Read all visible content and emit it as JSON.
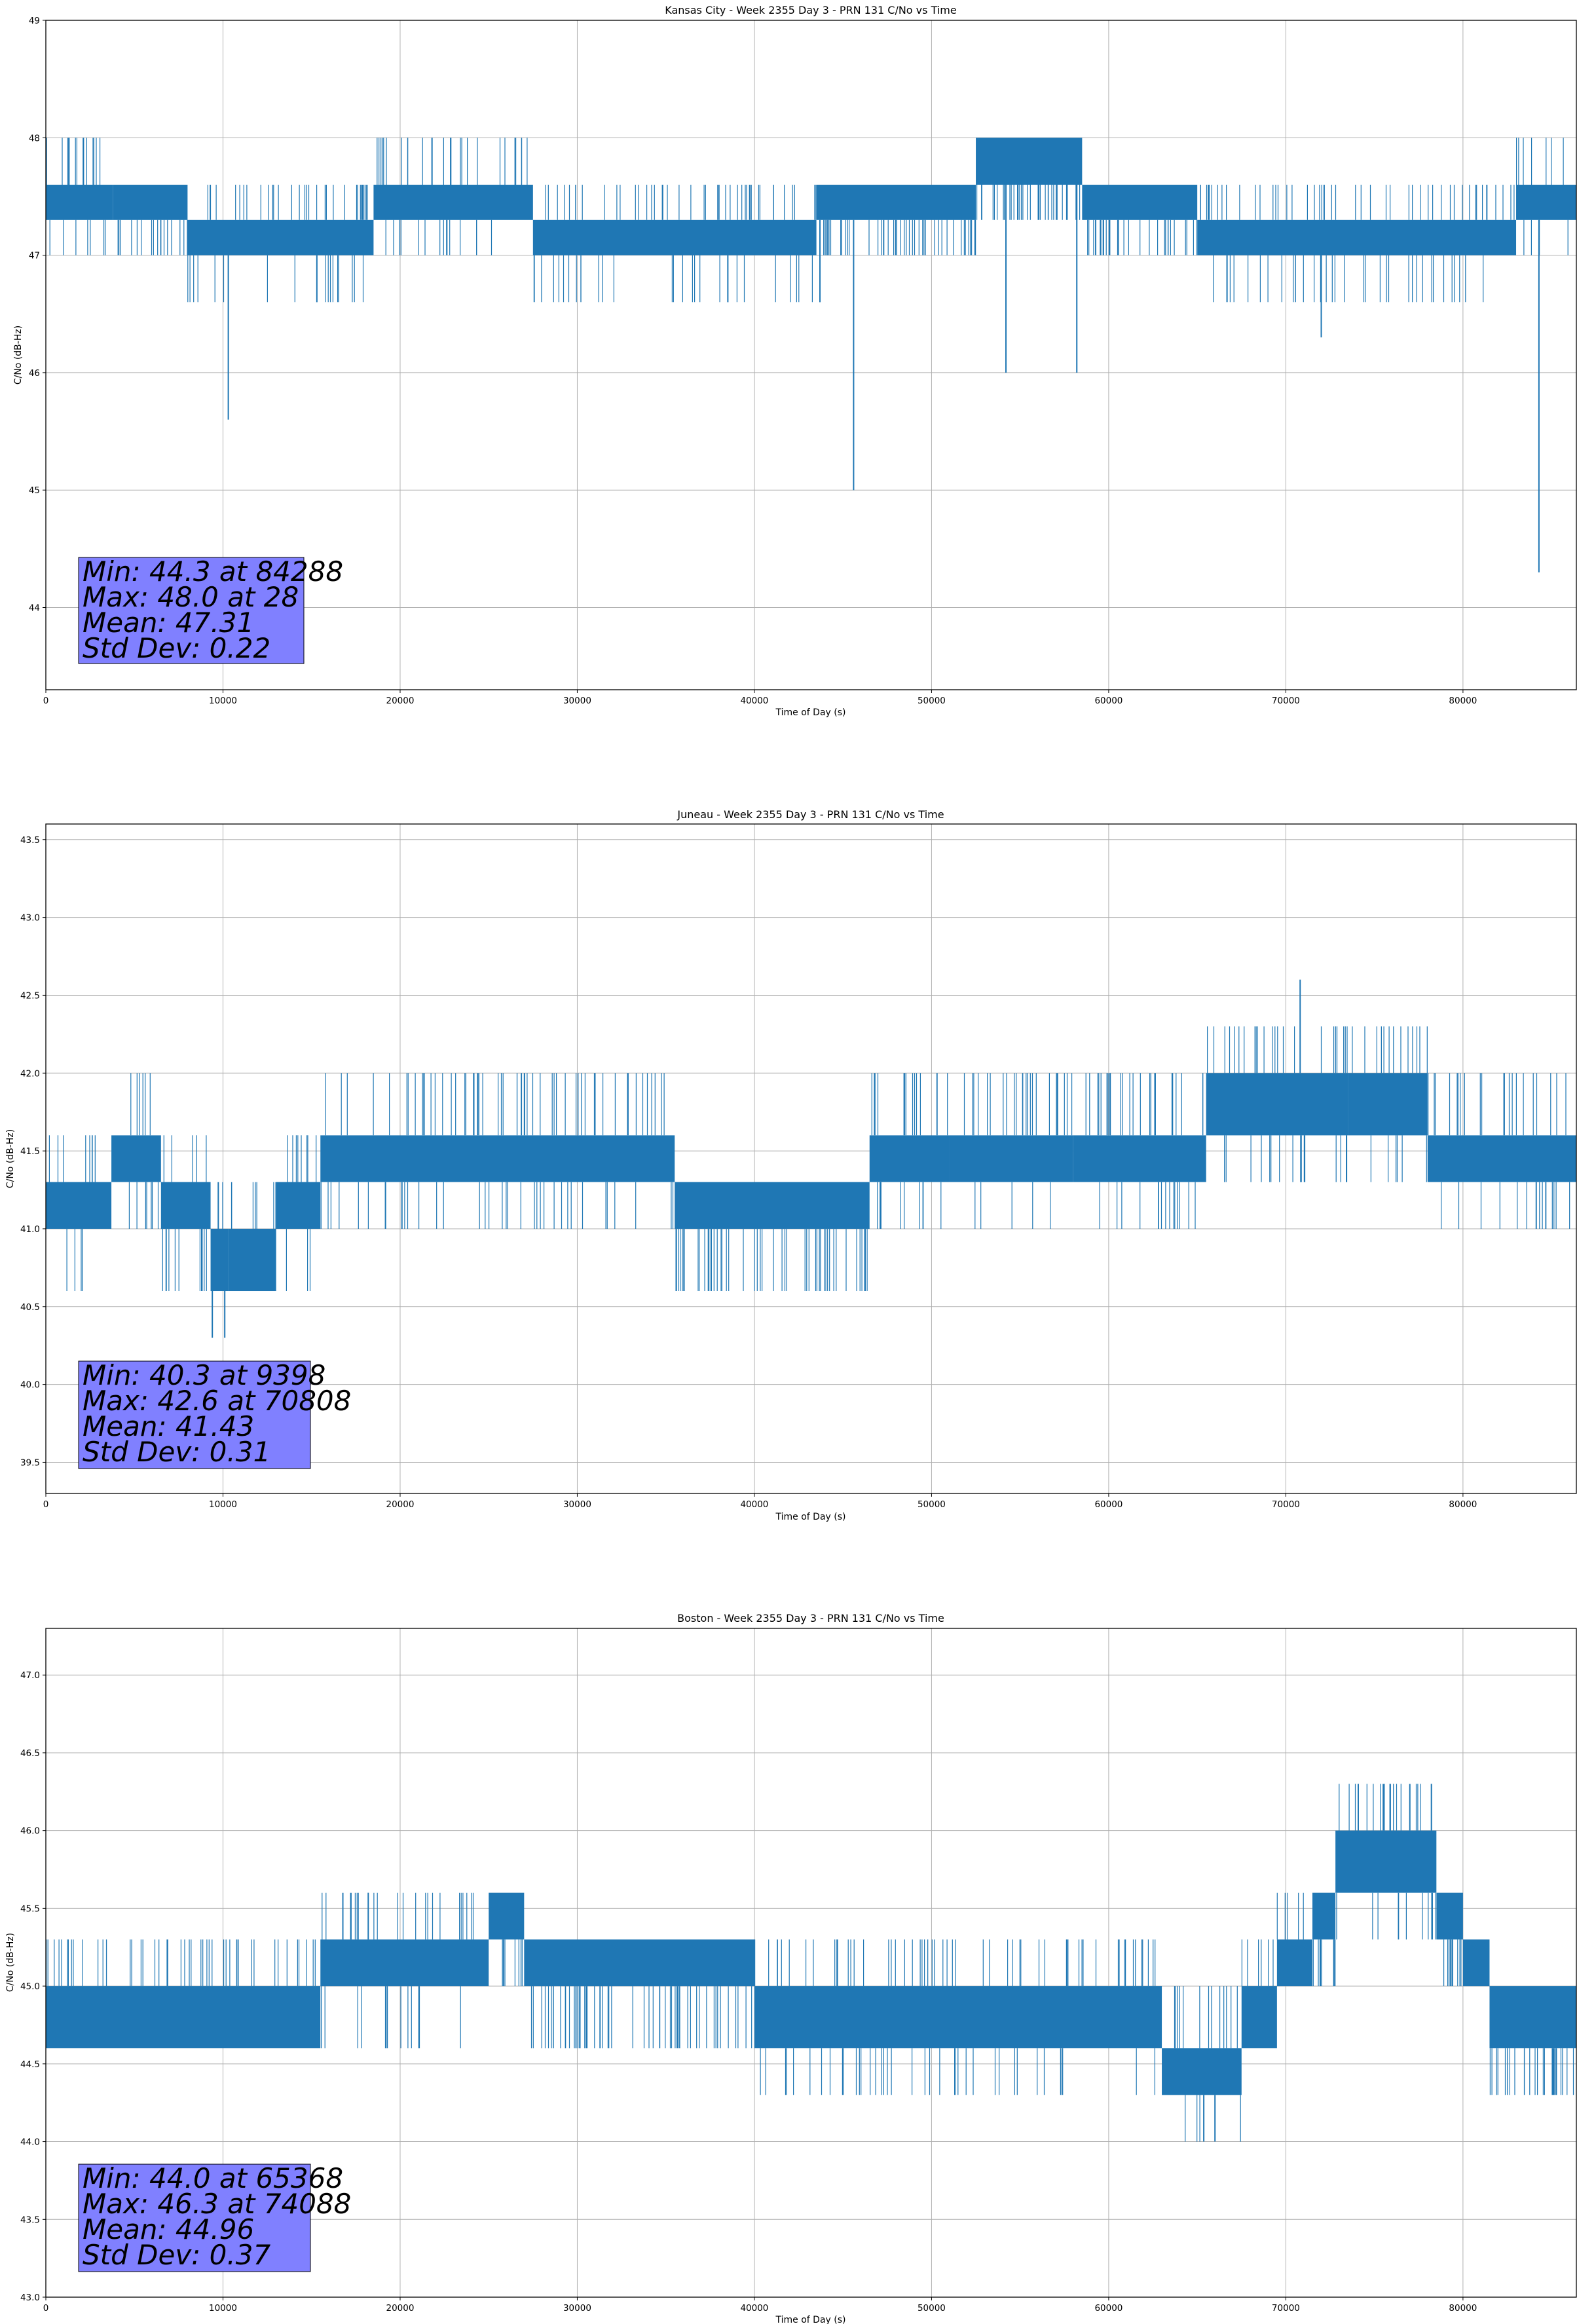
{
  "chart_data": [
    {
      "type": "line",
      "title": "Kansas City - Week 2355 Day 3 - PRN 131 C/No vs Time",
      "xlabel": "Time of Day (s)",
      "ylabel": "C/No (dB-Hz)",
      "xlim": [
        0,
        86400
      ],
      "ylim": [
        43.3,
        49.0
      ],
      "xticks": [
        0,
        10000,
        20000,
        30000,
        40000,
        50000,
        60000,
        70000,
        80000
      ],
      "yticks": [
        44,
        45,
        46,
        47,
        48,
        49
      ],
      "ytick_decimals": 0,
      "grid": true,
      "color": "#1f77b4",
      "segments": [
        {
          "x": [
            0,
            3800
          ],
          "base": [
            47.3,
            47.6
          ],
          "up": 48.0,
          "down": 47.0
        },
        {
          "x": [
            3800,
            8000
          ],
          "base": [
            47.3,
            47.6
          ],
          "up": 47.6,
          "down": 47.0
        },
        {
          "x": [
            8000,
            18500
          ],
          "base": [
            47.0,
            47.3
          ],
          "up": 47.6,
          "down": 46.6
        },
        {
          "x": [
            18500,
            27500
          ],
          "base": [
            47.3,
            47.6
          ],
          "up": 48.0,
          "down": 47.0
        },
        {
          "x": [
            27500,
            43500
          ],
          "base": [
            47.0,
            47.3
          ],
          "up": 47.6,
          "down": 46.6
        },
        {
          "x": [
            43500,
            52500
          ],
          "base": [
            47.3,
            47.6
          ],
          "up": 47.6,
          "down": 47.0
        },
        {
          "x": [
            52500,
            58500
          ],
          "base": [
            47.6,
            48.0
          ],
          "up": 48.0,
          "down": 47.3
        },
        {
          "x": [
            58500,
            65000
          ],
          "base": [
            47.3,
            47.6
          ],
          "up": 47.6,
          "down": 47.0
        },
        {
          "x": [
            65000,
            83000
          ],
          "base": [
            47.0,
            47.3
          ],
          "up": 47.6,
          "down": 46.6
        },
        {
          "x": [
            83000,
            86400
          ],
          "base": [
            47.3,
            47.6
          ],
          "up": 48.0,
          "down": 47.0
        }
      ],
      "spikes": [
        {
          "x": 10300,
          "y": 45.6
        },
        {
          "x": 45600,
          "y": 45.0
        },
        {
          "x": 84288,
          "y": 44.3
        },
        {
          "x": 54200,
          "y": 46.0
        },
        {
          "x": 58200,
          "y": 46.0
        },
        {
          "x": 72000,
          "y": 46.3
        },
        {
          "x": 15300,
          "y": 46.6
        },
        {
          "x": 38500,
          "y": 46.6
        },
        {
          "x": 43700,
          "y": 46.6
        },
        {
          "x": 28,
          "y": 48.0
        },
        {
          "x": 21800,
          "y": 48.0
        }
      ],
      "stats": {
        "min_text": "Min: 44.3 at 84288",
        "max_text": "Max: 48.0 at 28",
        "mean_text": "Mean: 47.31",
        "std_text": "Std Dev: 0.22"
      }
    },
    {
      "type": "line",
      "title": "Juneau - Week 2355 Day 3 - PRN 131 C/No vs Time",
      "xlabel": "Time of Day (s)",
      "ylabel": "C/No (dB-Hz)",
      "xlim": [
        0,
        86400
      ],
      "ylim": [
        39.3,
        43.6
      ],
      "xticks": [
        0,
        10000,
        20000,
        30000,
        40000,
        50000,
        60000,
        70000,
        80000
      ],
      "yticks": [
        39.5,
        40.0,
        40.5,
        41.0,
        41.5,
        42.0,
        42.5,
        43.0,
        43.5
      ],
      "ytick_decimals": 1,
      "grid": true,
      "color": "#1f77b4",
      "segments": [
        {
          "x": [
            0,
            3700
          ],
          "base": [
            41.0,
            41.3
          ],
          "up": 41.6,
          "down": 40.6
        },
        {
          "x": [
            3700,
            6500
          ],
          "base": [
            41.3,
            41.6
          ],
          "up": 42.0,
          "down": 41.0
        },
        {
          "x": [
            6500,
            9300
          ],
          "base": [
            41.0,
            41.3
          ],
          "up": 41.6,
          "down": 40.6
        },
        {
          "x": [
            9300,
            10300
          ],
          "base": [
            40.6,
            41.0
          ],
          "up": 41.3,
          "down": 40.3
        },
        {
          "x": [
            10300,
            13000
          ],
          "base": [
            40.6,
            41.0
          ],
          "up": 41.3,
          "down": 40.6
        },
        {
          "x": [
            13000,
            15500
          ],
          "base": [
            41.0,
            41.3
          ],
          "up": 41.6,
          "down": 40.6
        },
        {
          "x": [
            15500,
            35500
          ],
          "base": [
            41.3,
            41.6
          ],
          "up": 42.0,
          "down": 41.0
        },
        {
          "x": [
            35500,
            46500
          ],
          "base": [
            41.0,
            41.3
          ],
          "up": 41.3,
          "down": 40.6
        },
        {
          "x": [
            46500,
            51000
          ],
          "base": [
            41.3,
            41.6
          ],
          "up": 42.0,
          "down": 41.0
        },
        {
          "x": [
            51000,
            58000
          ],
          "base": [
            41.3,
            41.6
          ],
          "up": 42.0,
          "down": 41.0
        },
        {
          "x": [
            58000,
            65500
          ],
          "base": [
            41.3,
            41.6
          ],
          "up": 42.0,
          "down": 41.0
        },
        {
          "x": [
            65500,
            73500
          ],
          "base": [
            41.6,
            42.0
          ],
          "up": 42.3,
          "down": 41.3
        },
        {
          "x": [
            73500,
            78000
          ],
          "base": [
            41.6,
            42.0
          ],
          "up": 42.3,
          "down": 41.3
        },
        {
          "x": [
            78000,
            86400
          ],
          "base": [
            41.3,
            41.6
          ],
          "up": 42.0,
          "down": 41.0
        }
      ],
      "spikes": [
        {
          "x": 70808,
          "y": 42.6
        },
        {
          "x": 9398,
          "y": 40.3
        },
        {
          "x": 10100,
          "y": 40.3
        }
      ],
      "stats": {
        "min_text": "Min: 40.3 at 9398",
        "max_text": "Max: 42.6 at 70808",
        "mean_text": "Mean: 41.43",
        "std_text": "Std Dev: 0.31"
      }
    },
    {
      "type": "line",
      "title": "Boston - Week 2355 Day 3 - PRN 131 C/No vs Time",
      "xlabel": "Time of Day (s)",
      "ylabel": "C/No (dB-Hz)",
      "xlim": [
        0,
        86400
      ],
      "ylim": [
        43.0,
        47.3
      ],
      "xticks": [
        0,
        10000,
        20000,
        30000,
        40000,
        50000,
        60000,
        70000,
        80000
      ],
      "yticks": [
        43.0,
        43.5,
        44.0,
        44.5,
        45.0,
        45.5,
        46.0,
        46.5,
        47.0
      ],
      "ytick_decimals": 1,
      "grid": true,
      "color": "#1f77b4",
      "segments": [
        {
          "x": [
            0,
            15500
          ],
          "base": [
            44.6,
            45.0
          ],
          "up": 45.3,
          "down": 44.6
        },
        {
          "x": [
            15500,
            25000
          ],
          "base": [
            45.0,
            45.3
          ],
          "up": 45.6,
          "down": 44.6
        },
        {
          "x": [
            25000,
            27000
          ],
          "base": [
            45.3,
            45.6
          ],
          "up": 45.6,
          "down": 45.0
        },
        {
          "x": [
            27000,
            40000
          ],
          "base": [
            45.0,
            45.3
          ],
          "up": 45.3,
          "down": 44.6
        },
        {
          "x": [
            40000,
            63000
          ],
          "base": [
            44.6,
            45.0
          ],
          "up": 45.3,
          "down": 44.3
        },
        {
          "x": [
            63000,
            67500
          ],
          "base": [
            44.3,
            44.6
          ],
          "up": 45.0,
          "down": 44.0
        },
        {
          "x": [
            67500,
            69500
          ],
          "base": [
            44.6,
            45.0
          ],
          "up": 45.3,
          "down": 44.6
        },
        {
          "x": [
            69500,
            71500
          ],
          "base": [
            45.0,
            45.3
          ],
          "up": 45.6,
          "down": 45.0
        },
        {
          "x": [
            71500,
            72800
          ],
          "base": [
            45.3,
            45.6
          ],
          "up": 45.6,
          "down": 45.0
        },
        {
          "x": [
            72800,
            78500
          ],
          "base": [
            45.6,
            46.0
          ],
          "up": 46.3,
          "down": 45.3
        },
        {
          "x": [
            78500,
            80000
          ],
          "base": [
            45.3,
            45.6
          ],
          "up": 45.6,
          "down": 45.0
        },
        {
          "x": [
            80000,
            81500
          ],
          "base": [
            45.0,
            45.3
          ],
          "up": 45.3,
          "down": 45.0
        },
        {
          "x": [
            81500,
            86400
          ],
          "base": [
            44.6,
            45.0
          ],
          "up": 45.0,
          "down": 44.3
        }
      ],
      "spikes": [
        {
          "x": 65368,
          "y": 44.0
        },
        {
          "x": 66000,
          "y": 44.0
        },
        {
          "x": 74088,
          "y": 46.3
        },
        {
          "x": 75500,
          "y": 46.3
        },
        {
          "x": 77000,
          "y": 46.3
        },
        {
          "x": 18200,
          "y": 45.6
        }
      ],
      "stats": {
        "min_text": "Min: 44.0 at 65368",
        "max_text": "Max: 46.3 at 74088",
        "mean_text": "Mean: 44.96",
        "std_text": "Std Dev: 0.37"
      }
    }
  ]
}
